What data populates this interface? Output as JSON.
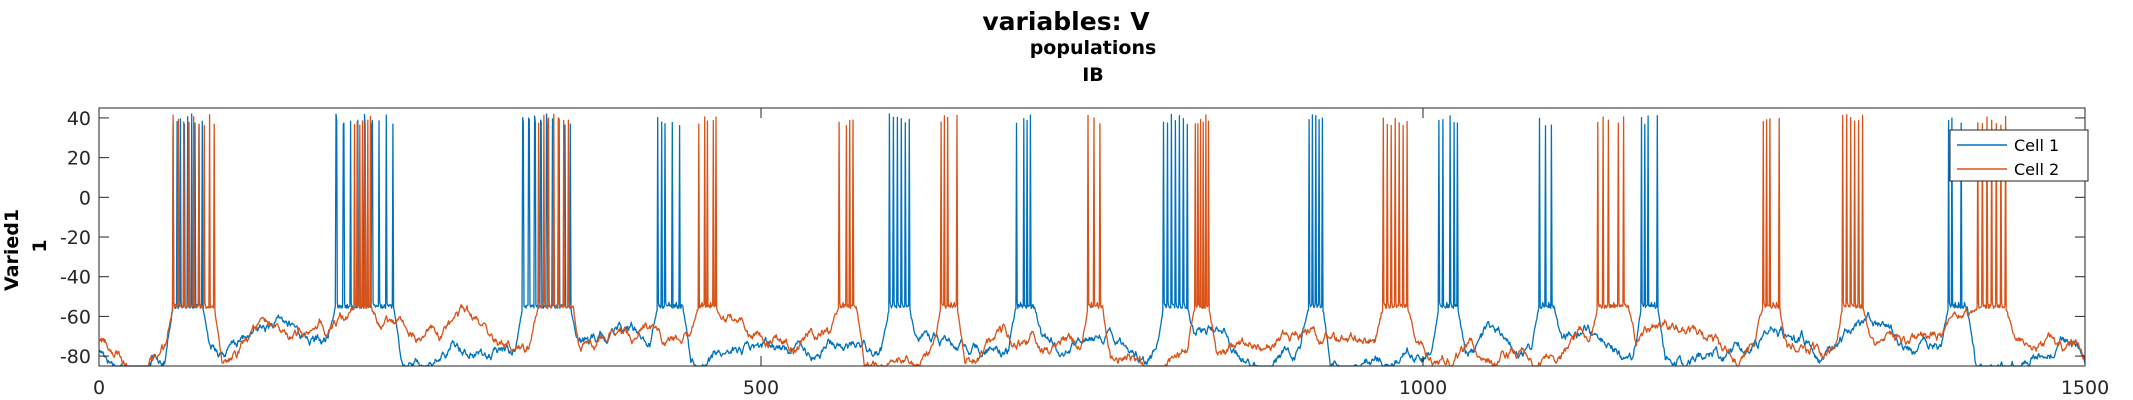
{
  "chart_data": {
    "type": "line",
    "title": "variables: V",
    "subtitle_lines": [
      "populations",
      "IB"
    ],
    "ylabel_lines": [
      "Varied1",
      "1"
    ],
    "xlabel": "",
    "xlim": [
      0,
      1500
    ],
    "ylim": [
      -85,
      45
    ],
    "xticks": [
      0,
      500,
      1000,
      1500
    ],
    "yticks": [
      40,
      20,
      0,
      -20,
      -40,
      -60,
      -80
    ],
    "grid": false,
    "legend_position": "top-right",
    "series": [
      {
        "name": "Cell 1",
        "color": "#0072BD",
        "rest_level": -75,
        "plateau_level": -55,
        "spike_peak": 42,
        "bursts": [
          [
            56,
            78,
            9
          ],
          [
            179,
            222,
            9
          ],
          [
            320,
            356,
            9
          ],
          [
            422,
            441,
            8
          ],
          [
            597,
            612,
            6
          ],
          [
            693,
            706,
            6
          ],
          [
            804,
            822,
            7
          ],
          [
            914,
            924,
            5
          ],
          [
            1012,
            1026,
            6
          ],
          [
            1088,
            1099,
            6
          ],
          [
            1165,
            1177,
            6
          ],
          [
            1397,
            1411,
            7
          ]
        ]
      },
      {
        "name": "Cell 2",
        "color": "#D95319",
        "rest_level": -76,
        "plateau_level": -55,
        "spike_peak": 42,
        "bursts": [
          [
            56,
            87,
            9
          ],
          [
            193,
            205,
            7
          ],
          [
            332,
            358,
            8
          ],
          [
            453,
            466,
            7
          ],
          [
            559,
            572,
            6
          ],
          [
            636,
            648,
            6
          ],
          [
            747,
            758,
            6
          ],
          [
            828,
            838,
            6
          ],
          [
            970,
            988,
            7
          ],
          [
            1132,
            1155,
            7
          ],
          [
            1257,
            1269,
            6
          ],
          [
            1317,
            1332,
            6
          ],
          [
            1419,
            1440,
            7
          ]
        ]
      }
    ]
  }
}
